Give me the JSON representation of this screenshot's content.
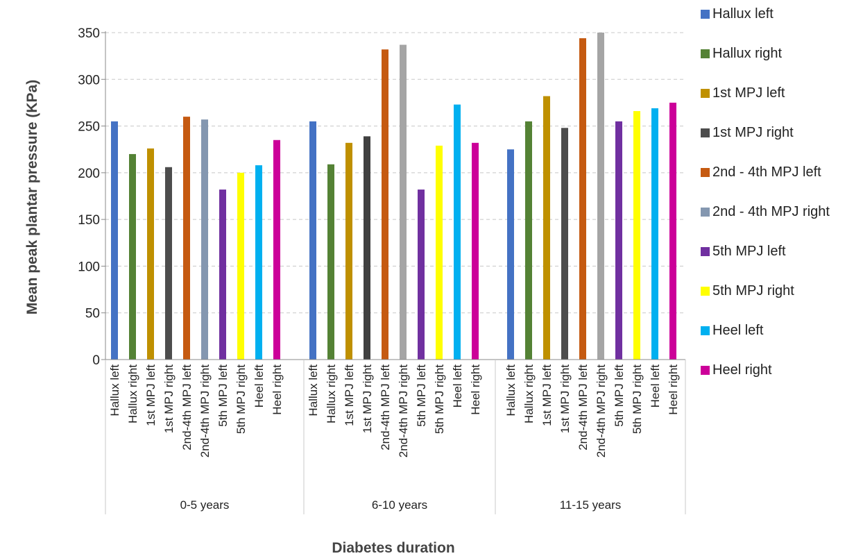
{
  "chart_data": {
    "type": "bar",
    "xlabel": "Diabetes duration",
    "ylabel": "Mean peak plantar pressure (KPa)",
    "ylim": [
      0,
      350
    ],
    "yticks": [
      0,
      50,
      100,
      150,
      200,
      250,
      300,
      350
    ],
    "grid": true,
    "legend_position": "right",
    "groups": [
      {
        "label": "0-5 years",
        "bars": [
          {
            "category": "Hallux left",
            "value": 255
          },
          {
            "category": "Hallux right",
            "value": 220
          },
          {
            "category": "1st MPJ left",
            "value": 226
          },
          {
            "category": "1st MPJ right",
            "value": 206
          },
          {
            "category": "2nd-4th MPJ left",
            "value": 260
          },
          {
            "category": "2nd-4th MPJ right",
            "value": 257
          },
          {
            "category": "5th MPJ left",
            "value": 182
          },
          {
            "category": "5th MPJ right",
            "value": 200
          },
          {
            "category": "Heel left",
            "value": 208
          },
          {
            "category": "Heel right",
            "value": 235
          }
        ]
      },
      {
        "label": "6-10 years",
        "bars": [
          {
            "category": "Hallux left",
            "value": 255
          },
          {
            "category": "Hallux right",
            "value": 209
          },
          {
            "category": "1st MPJ left",
            "value": 232
          },
          {
            "category": "1st MPJ right",
            "value": 239
          },
          {
            "category": "2nd-4th MPJ left",
            "value": 332
          },
          {
            "category": "2nd-4th MPJ right",
            "value": 337
          },
          {
            "category": "5th MPJ left",
            "value": 182
          },
          {
            "category": "5th MPJ right",
            "value": 229
          },
          {
            "category": "Heel left",
            "value": 273
          },
          {
            "category": "Heel right",
            "value": 232
          }
        ]
      },
      {
        "label": "11-15 years",
        "bars": [
          {
            "category": "Hallux left",
            "value": 225
          },
          {
            "category": "Hallux right",
            "value": 255
          },
          {
            "category": "1st MPJ left",
            "value": 282
          },
          {
            "category": "1st MPJ right",
            "value": 248
          },
          {
            "category": "2nd-4th MPJ left",
            "value": 344
          },
          {
            "category": "2nd-4th MPJ right",
            "value": 350
          },
          {
            "category": "5th MPJ left",
            "value": 255
          },
          {
            "category": "5th MPJ right",
            "value": 266
          },
          {
            "category": "Heel left",
            "value": 269
          },
          {
            "category": "Heel right",
            "value": 275
          }
        ]
      }
    ],
    "legend": [
      {
        "label": "Hallux left",
        "color": "#4472c4"
      },
      {
        "label": "Hallux right",
        "color": "#548235"
      },
      {
        "label": "1st MPJ left",
        "color": "#bf9000"
      },
      {
        "label": "1st MPJ right",
        "color": "#4d4d4d"
      },
      {
        "label": "2nd - 4th MPJ left",
        "color": "#c55a11"
      },
      {
        "label": "2nd - 4th MPJ right",
        "color": "#8497b0"
      },
      {
        "label": "5th MPJ left",
        "color": "#7030a0"
      },
      {
        "label": "5th MPJ right",
        "color": "#ffff00"
      },
      {
        "label": "Heel left",
        "color": "#00b0f0"
      },
      {
        "label": "Heel right",
        "color": "#cc0099"
      }
    ],
    "group_bar_colors": [
      [
        "#4472c4",
        "#548235",
        "#bf9000",
        "#4d4d4d",
        "#c55a11",
        "#8497b0",
        "#7030a0",
        "#ffff00",
        "#00b0f0",
        "#cc0099"
      ],
      [
        "#4472c4",
        "#548235",
        "#bf9000",
        "#404040",
        "#c55a11",
        "#a5a5a5",
        "#7030a0",
        "#ffff00",
        "#00b0f0",
        "#cc0099"
      ],
      [
        "#4472c4",
        "#548235",
        "#bf9000",
        "#4d4d4d",
        "#c55a11",
        "#a5a5a5",
        "#7030a0",
        "#ffff00",
        "#00b0f0",
        "#cc0099"
      ]
    ]
  }
}
